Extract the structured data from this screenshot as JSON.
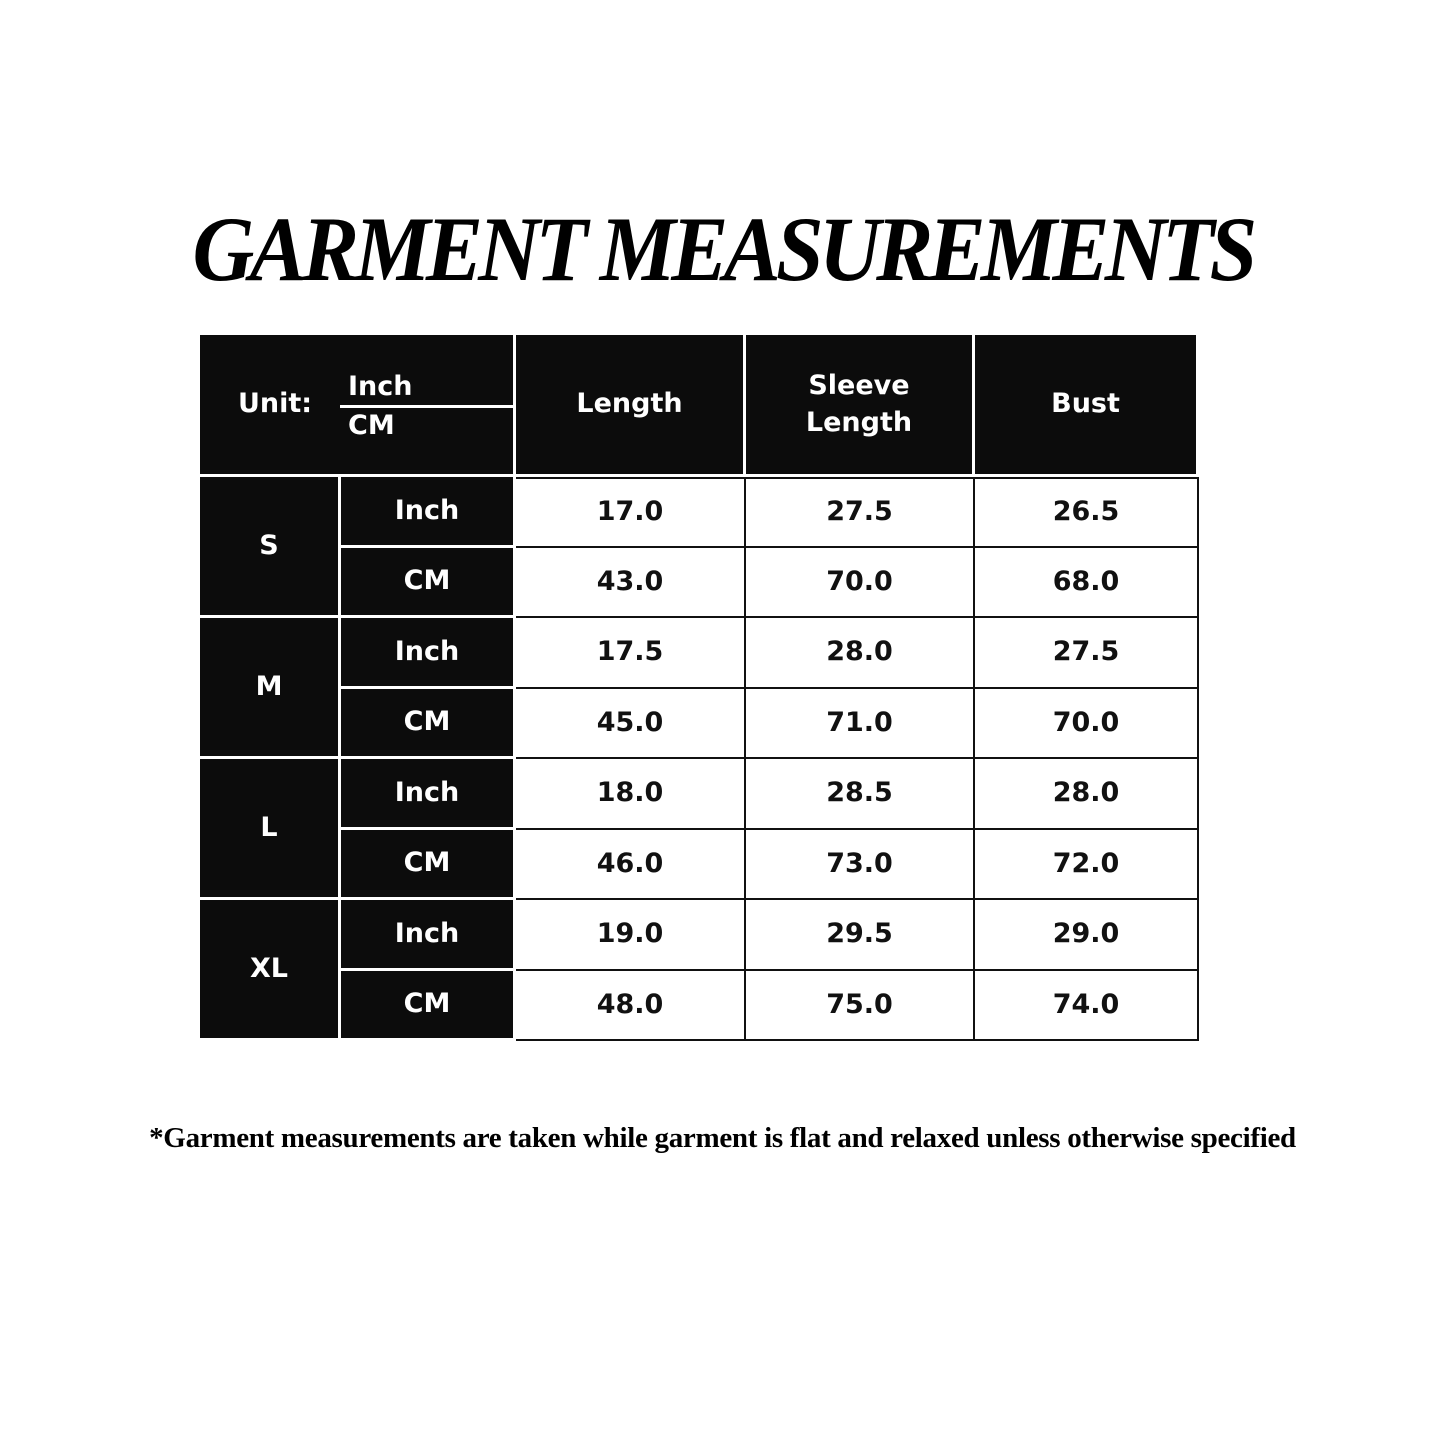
{
  "title": "GARMENT MEASUREMENTS",
  "note": "*Garment measurements are taken while garment is flat and relaxed unless otherwise specified",
  "table": {
    "unit_label": "Unit:",
    "unit_top": "Inch",
    "unit_bottom": "CM",
    "columns": [
      "Length",
      "Sleeve\nLength",
      "Bust"
    ],
    "sizes": [
      {
        "size": "S",
        "rows": [
          {
            "unit": "Inch",
            "values": [
              "17.0",
              "27.5",
              "26.5"
            ]
          },
          {
            "unit": "CM",
            "values": [
              "43.0",
              "70.0",
              "68.0"
            ]
          }
        ]
      },
      {
        "size": "M",
        "rows": [
          {
            "unit": "Inch",
            "values": [
              "17.5",
              "28.0",
              "27.5"
            ]
          },
          {
            "unit": "CM",
            "values": [
              "45.0",
              "71.0",
              "70.0"
            ]
          }
        ]
      },
      {
        "size": "L",
        "rows": [
          {
            "unit": "Inch",
            "values": [
              "18.0",
              "28.5",
              "28.0"
            ]
          },
          {
            "unit": "CM",
            "values": [
              "46.0",
              "73.0",
              "72.0"
            ]
          }
        ]
      },
      {
        "size": "XL",
        "rows": [
          {
            "unit": "Inch",
            "values": [
              "19.0",
              "29.5",
              "29.0"
            ]
          },
          {
            "unit": "CM",
            "values": [
              "48.0",
              "75.0",
              "74.0"
            ]
          }
        ]
      }
    ]
  }
}
